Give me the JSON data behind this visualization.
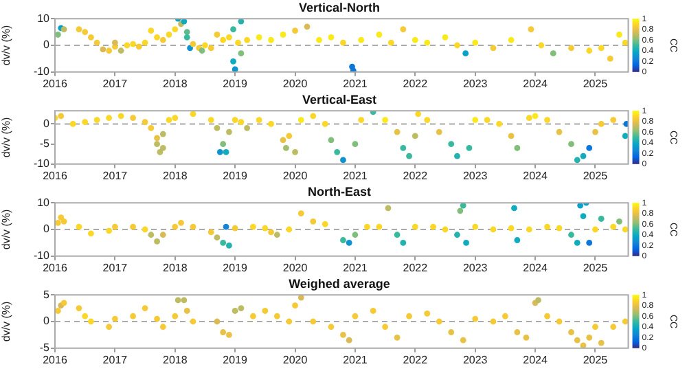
{
  "chart_data": [
    {
      "type": "scatter",
      "title": "Vertical-North",
      "ylabel": "dv/v (%)",
      "marker": "circle",
      "grid": false,
      "xlim": [
        2016,
        2025.55
      ],
      "xticks": [
        2016,
        2017,
        2018,
        2019,
        2020,
        2021,
        2022,
        2023,
        2024,
        2025
      ],
      "ylim": [
        -10,
        10
      ],
      "yticks": [
        -10,
        0,
        10
      ],
      "clim": [
        0,
        1
      ],
      "cticks": [
        0,
        0.2,
        0.4,
        0.6,
        0.8,
        1
      ],
      "clabel": "CC",
      "ref_lines": [
        {
          "axis": "y",
          "value": 0,
          "color": "#aaaaaa",
          "line_style": "dashed"
        }
      ],
      "x": [
        2016.05,
        2016.1,
        2016.15,
        2016.4,
        2016.5,
        2016.6,
        2016.7,
        2016.8,
        2016.9,
        2017.0,
        2017.0,
        2017.1,
        2017.2,
        2017.3,
        2017.4,
        2017.5,
        2017.6,
        2017.7,
        2017.8,
        2017.9,
        2018.0,
        2018.05,
        2018.1,
        2018.15,
        2018.2,
        2018.2,
        2018.25,
        2018.3,
        2018.4,
        2018.45,
        2018.5,
        2018.6,
        2018.7,
        2018.8,
        2018.9,
        2018.97,
        2018.97,
        2019.0,
        2019.05,
        2019.1,
        2019.1,
        2019.2,
        2019.4,
        2019.6,
        2019.8,
        2020.0,
        2020.2,
        2020.4,
        2020.6,
        2020.8,
        2020.95,
        2020.97,
        2021.1,
        2021.4,
        2021.6,
        2021.8,
        2022.0,
        2022.2,
        2022.5,
        2022.7,
        2022.84,
        2023.0,
        2023.3,
        2023.6,
        2023.93,
        2024.1,
        2024.3,
        2024.6,
        2024.9,
        2025.1,
        2025.25,
        2025.4,
        2025.5
      ],
      "values": [
        4,
        6.5,
        6,
        6,
        5,
        3,
        1,
        -1.5,
        -2,
        -0.5,
        1,
        -2,
        0,
        0.5,
        -0.5,
        1,
        5.5,
        3,
        2,
        4,
        6,
        10,
        8,
        9,
        5,
        3,
        -1,
        0.5,
        -1,
        -2,
        0,
        -1,
        4,
        2,
        3,
        6,
        -6,
        -9,
        1,
        9,
        -3,
        2,
        3,
        2,
        4,
        5.5,
        7,
        2,
        3,
        1,
        -8,
        -9.5,
        2,
        4,
        1,
        6,
        2,
        1,
        3,
        0,
        -3,
        1,
        -1,
        2,
        6,
        0,
        -3,
        -1,
        -2,
        -1,
        -5,
        4,
        1
      ],
      "cvalues": [
        0.6,
        0.35,
        0.7,
        0.85,
        0.85,
        0.85,
        0.85,
        0.75,
        0.85,
        0.85,
        0.75,
        0.7,
        0.9,
        0.9,
        0.85,
        0.9,
        0.9,
        0.9,
        0.85,
        0.9,
        0.9,
        0.35,
        0.7,
        0.4,
        0.55,
        0.5,
        0.3,
        0.85,
        0.85,
        0.6,
        0.9,
        0.85,
        0.85,
        0.9,
        0.9,
        0.5,
        0.4,
        0.3,
        0.9,
        0.45,
        0.6,
        0.9,
        0.95,
        0.95,
        0.95,
        0.85,
        0.75,
        0.95,
        0.95,
        0.9,
        0.2,
        0.2,
        0.95,
        0.95,
        0.9,
        0.85,
        0.95,
        0.95,
        0.95,
        0.9,
        0.35,
        0.95,
        0.85,
        0.95,
        0.85,
        0.9,
        0.6,
        0.85,
        0.9,
        0.9,
        0.85,
        0.95,
        0.9
      ]
    },
    {
      "type": "scatter",
      "title": "Vertical-East",
      "ylabel": "dv/v (%)",
      "marker": "circle",
      "grid": false,
      "xlim": [
        2016,
        2025.55
      ],
      "xticks": [
        2016,
        2017,
        2018,
        2019,
        2020,
        2021,
        2022,
        2023,
        2024,
        2025
      ],
      "ylim": [
        -10,
        3.3
      ],
      "yticks": [
        -10,
        -5,
        0
      ],
      "clim": [
        0,
        1
      ],
      "cticks": [
        0,
        0.2,
        0.4,
        0.6,
        0.8,
        1
      ],
      "clabel": "CC",
      "ref_lines": [
        {
          "axis": "y",
          "value": 0,
          "color": "#aaaaaa",
          "line_style": "dashed"
        }
      ],
      "x": [
        2016.0,
        2016.1,
        2016.3,
        2016.5,
        2016.7,
        2016.9,
        2017.1,
        2017.3,
        2017.5,
        2017.6,
        2017.7,
        2017.7,
        2017.75,
        2017.8,
        2017.8,
        2017.9,
        2018.0,
        2018.3,
        2018.6,
        2018.7,
        2018.75,
        2018.8,
        2018.85,
        2018.9,
        2019.0,
        2019.1,
        2019.2,
        2019.4,
        2019.6,
        2019.8,
        2019.85,
        2019.9,
        2020.0,
        2020.1,
        2020.3,
        2020.5,
        2020.6,
        2020.7,
        2020.8,
        2021.0,
        2021.1,
        2021.3,
        2021.5,
        2021.7,
        2021.8,
        2021.9,
        2022.0,
        2022.05,
        2022.2,
        2022.4,
        2022.6,
        2022.7,
        2022.9,
        2023.0,
        2023.2,
        2023.4,
        2023.6,
        2023.7,
        2023.9,
        2024.0,
        2024.2,
        2024.4,
        2024.6,
        2024.7,
        2024.8,
        2024.9,
        2025.0,
        2025.1,
        2025.3,
        2025.5,
        2025.52
      ],
      "values": [
        1.5,
        2,
        0,
        0.5,
        1,
        1.5,
        2,
        1.5,
        0.5,
        -1,
        -3.5,
        -5,
        -7,
        -6,
        -2.5,
        1,
        1.5,
        2.5,
        1,
        -1,
        -7,
        -5,
        -7,
        -2,
        1,
        0.5,
        -1,
        1,
        0,
        -4,
        -6,
        -3,
        -7,
        1,
        2,
        0,
        -4,
        -7,
        -9,
        -5,
        1,
        3,
        1,
        -2,
        -6,
        -8,
        -3,
        2.5,
        1,
        -2,
        -5,
        -8,
        -6,
        1,
        1,
        0,
        -3,
        -6,
        1.5,
        2,
        1,
        -2,
        -5,
        -9,
        -8,
        -6,
        -2,
        0,
        1,
        -3,
        0
      ],
      "cvalues": [
        0.9,
        0.85,
        0.9,
        0.9,
        0.9,
        0.9,
        0.9,
        0.85,
        0.85,
        0.85,
        0.8,
        0.7,
        0.7,
        0.7,
        0.7,
        0.9,
        0.9,
        0.9,
        0.9,
        0.7,
        0.3,
        0.6,
        0.4,
        0.7,
        0.9,
        0.9,
        0.7,
        0.9,
        0.9,
        0.8,
        0.65,
        0.85,
        0.7,
        0.95,
        0.9,
        0.9,
        0.6,
        0.5,
        0.3,
        0.6,
        0.9,
        0.5,
        0.95,
        0.8,
        0.5,
        0.5,
        0.7,
        0.9,
        0.9,
        0.8,
        0.5,
        0.45,
        0.5,
        0.95,
        0.9,
        0.9,
        0.8,
        0.6,
        0.9,
        0.95,
        0.9,
        0.8,
        0.6,
        0.45,
        0.4,
        0.2,
        0.8,
        0.85,
        0.85,
        0.4,
        0.2
      ]
    },
    {
      "type": "scatter",
      "title": "North-East",
      "ylabel": "dv/v (%)",
      "marker": "circle",
      "grid": false,
      "xlim": [
        2016,
        2025.55
      ],
      "xticks": [
        2016,
        2017,
        2018,
        2019,
        2020,
        2021,
        2022,
        2023,
        2024,
        2025
      ],
      "ylim": [
        -10,
        10
      ],
      "yticks": [
        -10,
        0,
        10
      ],
      "clim": [
        0,
        1
      ],
      "cticks": [
        0,
        0.2,
        0.4,
        0.6,
        0.8,
        1
      ],
      "clabel": "CC",
      "ref_lines": [
        {
          "axis": "y",
          "value": 0,
          "color": "#aaaaaa",
          "line_style": "dashed"
        }
      ],
      "x": [
        2016.05,
        2016.1,
        2016.15,
        2016.4,
        2016.6,
        2016.9,
        2017.0,
        2017.3,
        2017.5,
        2017.6,
        2017.7,
        2017.8,
        2018.0,
        2018.1,
        2018.3,
        2018.6,
        2018.7,
        2018.8,
        2018.85,
        2018.9,
        2019.0,
        2019.3,
        2019.5,
        2019.6,
        2019.7,
        2019.9,
        2020.1,
        2020.3,
        2020.5,
        2020.8,
        2020.9,
        2021.0,
        2021.2,
        2021.4,
        2021.55,
        2021.7,
        2021.8,
        2022.0,
        2022.3,
        2022.5,
        2022.7,
        2022.75,
        2022.8,
        2022.85,
        2023.0,
        2023.3,
        2023.6,
        2023.65,
        2023.7,
        2023.9,
        2024.2,
        2024.4,
        2024.6,
        2024.7,
        2024.75,
        2024.8,
        2024.85,
        2024.9,
        2025.0,
        2025.1,
        2025.3,
        2025.4,
        2025.5
      ],
      "values": [
        2.5,
        4.5,
        3,
        1,
        -1.5,
        -0.5,
        1,
        1,
        0,
        -2,
        -4.5,
        -2,
        1,
        2.5,
        1,
        -1,
        -3,
        -5,
        1,
        -6,
        0.5,
        1,
        0.5,
        -1,
        -2,
        0,
        6,
        3,
        2,
        -4,
        -5,
        -2,
        1,
        1,
        8,
        -2,
        -5,
        1,
        1,
        0,
        -2,
        7,
        9,
        -5,
        1,
        0,
        0.5,
        8,
        -4,
        0,
        1,
        0.5,
        -2,
        -5,
        9,
        5,
        10,
        -5,
        0,
        4,
        1,
        3,
        0
      ],
      "cvalues": [
        0.85,
        0.85,
        0.85,
        0.9,
        0.9,
        0.9,
        0.85,
        0.85,
        0.9,
        0.7,
        0.7,
        0.75,
        0.85,
        0.85,
        0.85,
        0.85,
        0.7,
        0.5,
        0.25,
        0.45,
        0.85,
        0.9,
        0.9,
        0.85,
        0.7,
        0.9,
        0.85,
        0.85,
        0.9,
        0.5,
        0.3,
        0.6,
        0.9,
        0.9,
        0.7,
        0.5,
        0.45,
        0.9,
        0.9,
        0.9,
        0.45,
        0.6,
        0.5,
        0.4,
        0.9,
        0.9,
        0.9,
        0.4,
        0.4,
        0.9,
        0.9,
        0.9,
        0.5,
        0.4,
        0.35,
        0.4,
        0.35,
        0.2,
        0.9,
        0.5,
        0.9,
        0.6,
        0.9
      ]
    },
    {
      "type": "scatter",
      "title": "Weighed average",
      "ylabel": "dv/v (%)",
      "marker": "circle",
      "grid": false,
      "xlim": [
        2016,
        2025.55
      ],
      "xticks": [
        2016,
        2017,
        2018,
        2019,
        2020,
        2021,
        2022,
        2023,
        2024,
        2025
      ],
      "ylim": [
        -5,
        5
      ],
      "yticks": [
        -5,
        0,
        5
      ],
      "clim": [
        0,
        1
      ],
      "cticks": [
        0,
        0.2,
        0.4,
        0.6,
        0.8,
        1
      ],
      "clabel": "CC",
      "ref_lines": [
        {
          "axis": "y",
          "value": 0,
          "color": "#aaaaaa",
          "line_style": "dashed"
        }
      ],
      "x": [
        2016.05,
        2016.1,
        2016.15,
        2016.4,
        2016.5,
        2016.6,
        2016.9,
        2017.0,
        2017.3,
        2017.5,
        2017.7,
        2017.8,
        2018.0,
        2018.05,
        2018.15,
        2018.2,
        2018.3,
        2018.7,
        2018.8,
        2018.9,
        2019.0,
        2019.1,
        2019.3,
        2019.5,
        2019.7,
        2019.9,
        2020.0,
        2020.1,
        2020.3,
        2020.6,
        2020.8,
        2020.9,
        2021.0,
        2021.3,
        2021.5,
        2021.7,
        2021.9,
        2022.2,
        2022.4,
        2022.6,
        2022.8,
        2023.0,
        2023.3,
        2023.5,
        2023.7,
        2023.85,
        2024.0,
        2024.05,
        2024.2,
        2024.4,
        2024.6,
        2024.7,
        2024.8,
        2024.9,
        2025.0,
        2025.1,
        2025.3,
        2025.5
      ],
      "values": [
        2,
        3,
        3.5,
        2.5,
        1,
        0,
        -1,
        0.5,
        1,
        2.5,
        0.5,
        -1,
        1,
        4,
        4,
        2,
        0,
        0,
        -2,
        -2.5,
        2,
        2.5,
        1,
        2,
        1,
        0,
        3,
        4.5,
        0,
        -1,
        -2.5,
        -3.5,
        1,
        2,
        -1,
        -3,
        1,
        1.5,
        0,
        -2,
        -3.5,
        0.5,
        0,
        1,
        -2,
        -3,
        3.5,
        4,
        1,
        0,
        -2,
        -3.5,
        -4.5,
        -3,
        -1,
        -4,
        -1,
        0
      ],
      "cvalues": [
        0.85,
        0.75,
        0.85,
        0.85,
        0.9,
        0.9,
        0.85,
        0.85,
        0.85,
        0.85,
        0.85,
        0.85,
        0.85,
        0.7,
        0.7,
        0.8,
        0.85,
        0.75,
        0.8,
        0.8,
        0.7,
        0.7,
        0.85,
        0.85,
        0.85,
        0.85,
        0.85,
        0.75,
        0.85,
        0.85,
        0.8,
        0.75,
        0.85,
        0.85,
        0.85,
        0.8,
        0.85,
        0.85,
        0.85,
        0.8,
        0.8,
        0.85,
        0.85,
        0.85,
        0.8,
        0.8,
        0.75,
        0.7,
        0.85,
        0.85,
        0.8,
        0.8,
        0.8,
        0.8,
        0.85,
        0.8,
        0.85,
        0.85
      ]
    }
  ]
}
